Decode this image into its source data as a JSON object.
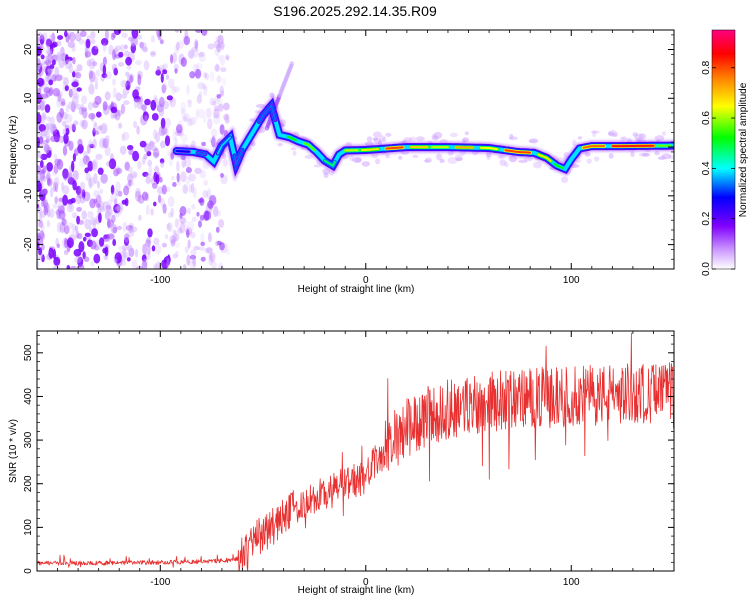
{
  "title": "S196.2025.292.14.35.R09",
  "chart_data": [
    {
      "type": "heatmap",
      "name": "spectrogram",
      "xlabel": "Height of straight line (km)",
      "ylabel": "Frequency (Hz)",
      "xlim": [
        -160,
        150
      ],
      "ylim": [
        -25,
        24
      ],
      "xticks": [
        -100,
        0,
        100
      ],
      "yticks": [
        -20,
        -10,
        0,
        10,
        20
      ],
      "colorbar": {
        "label": "Normalized spectral amplitude",
        "range": [
          0,
          0.95
        ],
        "ticks": [
          0.0,
          0.2,
          0.4,
          0.6,
          0.8
        ],
        "colormap": [
          "#ffffff",
          "#8000ff",
          "#0000ff",
          "#00ffff",
          "#00ff00",
          "#ffff00",
          "#ff8000",
          "#ff0000",
          "#ff0080"
        ]
      },
      "ridge_frequency": [
        {
          "x": -92,
          "y": -0.8
        },
        {
          "x": -84,
          "y": -1.0
        },
        {
          "x": -78,
          "y": -1.5
        },
        {
          "x": -74,
          "y": -3.0
        },
        {
          "x": -70,
          "y": 0.3
        },
        {
          "x": -66,
          "y": 2.0
        },
        {
          "x": -63,
          "y": -3.5
        },
        {
          "x": -60,
          "y": -0.5
        },
        {
          "x": -55,
          "y": 3.0
        },
        {
          "x": -50,
          "y": 6.5
        },
        {
          "x": -46,
          "y": 8.5
        },
        {
          "x": -42,
          "y": 2.5
        },
        {
          "x": -37,
          "y": 2.0
        },
        {
          "x": -33,
          "y": 1.2
        },
        {
          "x": -28,
          "y": 0.5
        },
        {
          "x": -24,
          "y": -1.0
        },
        {
          "x": -20,
          "y": -2.8
        },
        {
          "x": -16,
          "y": -3.8
        },
        {
          "x": -13,
          "y": -1.5
        },
        {
          "x": -10,
          "y": -0.7
        },
        {
          "x": 0,
          "y": -0.6
        },
        {
          "x": 20,
          "y": 0.0
        },
        {
          "x": 40,
          "y": 0.0
        },
        {
          "x": 60,
          "y": -0.2
        },
        {
          "x": 74,
          "y": -1.0
        },
        {
          "x": 82,
          "y": -1.2
        },
        {
          "x": 88,
          "y": -2.2
        },
        {
          "x": 93,
          "y": -3.8
        },
        {
          "x": 97,
          "y": -4.5
        },
        {
          "x": 100,
          "y": -2.5
        },
        {
          "x": 104,
          "y": -0.3
        },
        {
          "x": 110,
          "y": 0.2
        },
        {
          "x": 125,
          "y": 0.2
        },
        {
          "x": 150,
          "y": 0.3
        }
      ]
    },
    {
      "type": "line",
      "name": "snr",
      "xlabel": "Height of straight line (km)",
      "ylabel": "SNR (10 * v/v)",
      "xlim": [
        -160,
        150
      ],
      "ylim": [
        0,
        550
      ],
      "xticks": [
        -100,
        0,
        100
      ],
      "yticks": [
        0,
        100,
        200,
        300,
        400,
        500
      ],
      "color": "#e83030",
      "trend": [
        {
          "x": -160,
          "y": 18
        },
        {
          "x": -130,
          "y": 18
        },
        {
          "x": -100,
          "y": 20
        },
        {
          "x": -75,
          "y": 22
        },
        {
          "x": -62,
          "y": 28
        },
        {
          "x": -58,
          "y": 45
        },
        {
          "x": -52,
          "y": 80
        },
        {
          "x": -45,
          "y": 105
        },
        {
          "x": -38,
          "y": 130
        },
        {
          "x": -30,
          "y": 160
        },
        {
          "x": -20,
          "y": 175
        },
        {
          "x": -10,
          "y": 200
        },
        {
          "x": -2,
          "y": 210
        },
        {
          "x": 5,
          "y": 250
        },
        {
          "x": 10,
          "y": 280
        },
        {
          "x": 18,
          "y": 320
        },
        {
          "x": 28,
          "y": 350
        },
        {
          "x": 40,
          "y": 370
        },
        {
          "x": 55,
          "y": 385
        },
        {
          "x": 75,
          "y": 395
        },
        {
          "x": 100,
          "y": 400
        },
        {
          "x": 120,
          "y": 405
        },
        {
          "x": 150,
          "y": 410
        }
      ],
      "peak_max": 545
    }
  ]
}
